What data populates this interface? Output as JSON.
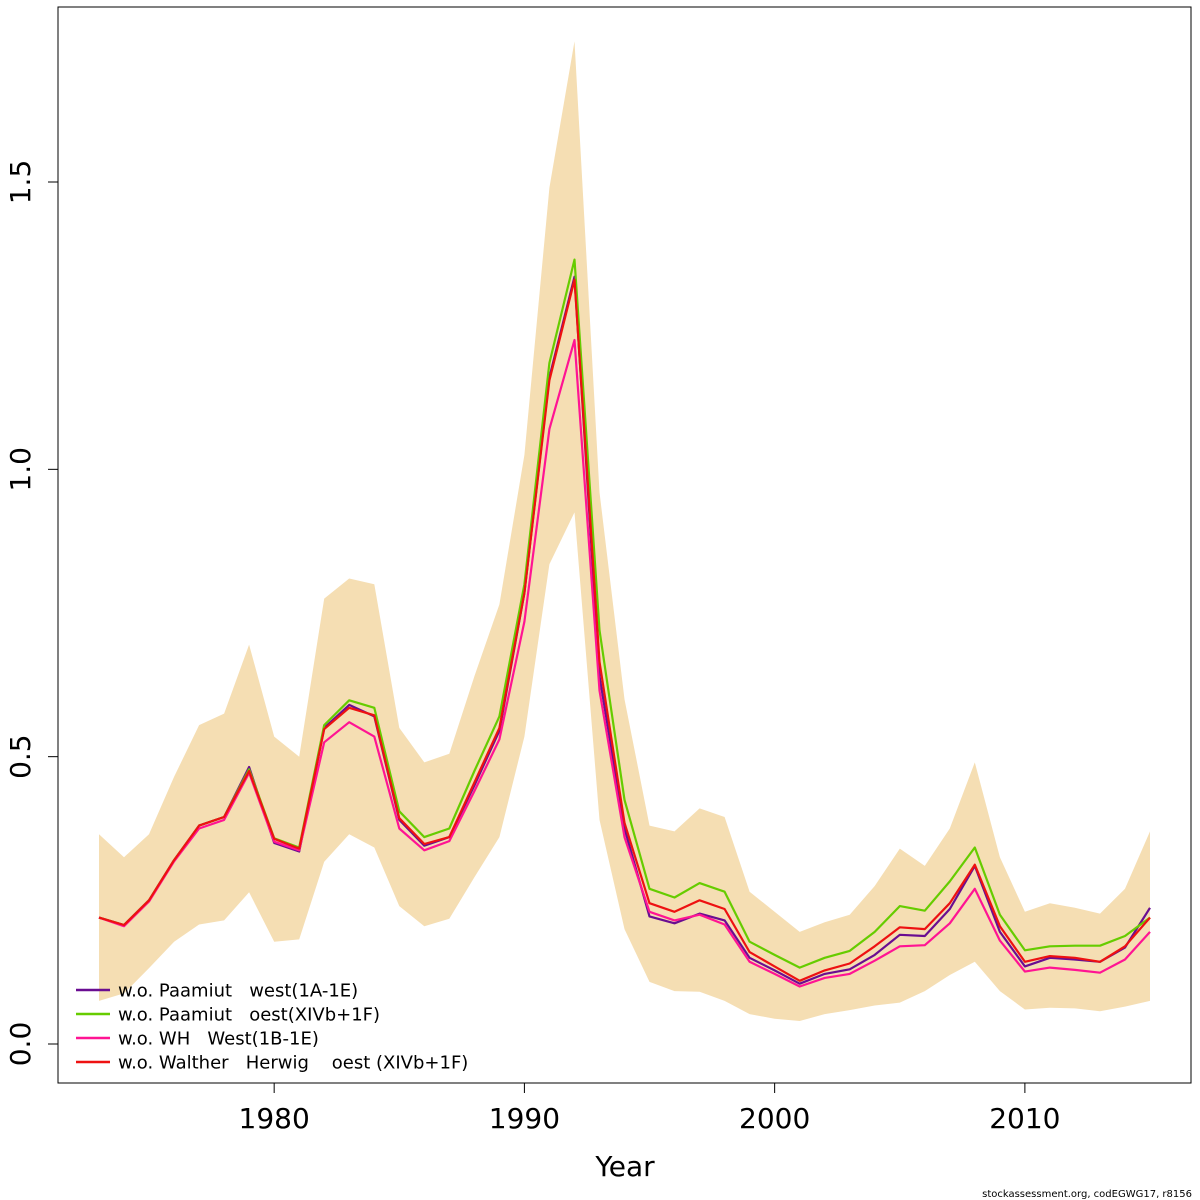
{
  "chart_data": {
    "type": "line",
    "title": "",
    "xlabel": "Year",
    "ylabel": "",
    "xlim": [
      1971.6,
      1976.4
    ],
    "ylim": [
      -0.05,
      1.82
    ],
    "x_ticks": [
      1980,
      1990,
      2000,
      2010
    ],
    "y_ticks": [
      0.0,
      0.5,
      1.0,
      1.5
    ],
    "x_tick_labels": [
      "1980",
      "1990",
      "2000",
      "2010"
    ],
    "y_tick_labels": [
      "0.0",
      "0.5",
      "1.0",
      "1.5"
    ],
    "grid": false,
    "legend_position": "bottom-left",
    "x": [
      1973,
      1974,
      1975,
      1976,
      1977,
      1978,
      1979,
      1980,
      1981,
      1982,
      1983,
      1984,
      1985,
      1986,
      1987,
      1988,
      1989,
      1990,
      1991,
      1992,
      1993,
      1994,
      1995,
      1996,
      1997,
      1998,
      1999,
      2000,
      2001,
      2002,
      2003,
      2004,
      2005,
      2006,
      2007,
      2008,
      2009,
      2010,
      2011,
      2012,
      2013,
      2014,
      2015
    ],
    "band": {
      "color": "#F5DEB3",
      "upper": [
        0.365,
        0.325,
        0.365,
        0.465,
        0.555,
        0.575,
        0.695,
        0.535,
        0.5,
        0.775,
        0.81,
        0.8,
        0.55,
        0.49,
        0.505,
        0.64,
        0.765,
        1.025,
        1.49,
        1.745,
        0.96,
        0.6,
        0.38,
        0.37,
        0.41,
        0.395,
        0.265,
        0.23,
        0.195,
        0.212,
        0.225,
        0.275,
        0.34,
        0.31,
        0.375,
        0.49,
        0.325,
        0.23,
        0.245,
        0.237,
        0.227,
        0.27,
        0.37
      ],
      "lower": [
        0.075,
        0.088,
        0.132,
        0.178,
        0.208,
        0.215,
        0.264,
        0.178,
        0.182,
        0.317,
        0.365,
        0.342,
        0.24,
        0.205,
        0.218,
        0.29,
        0.36,
        0.535,
        0.835,
        0.925,
        0.39,
        0.2,
        0.108,
        0.092,
        0.091,
        0.075,
        0.052,
        0.044,
        0.04,
        0.052,
        0.059,
        0.067,
        0.072,
        0.092,
        0.12,
        0.143,
        0.092,
        0.06,
        0.063,
        0.062,
        0.057,
        0.065,
        0.075
      ]
    },
    "series": [
      {
        "name": "w.o. Paamiut   west(1A-1E)",
        "color": "#6A0D91",
        "values": [
          0.22,
          0.207,
          0.25,
          0.32,
          0.38,
          0.395,
          0.482,
          0.35,
          0.335,
          0.55,
          0.59,
          0.57,
          0.39,
          0.345,
          0.36,
          0.45,
          0.545,
          0.785,
          1.16,
          1.335,
          0.64,
          0.375,
          0.222,
          0.21,
          0.227,
          0.215,
          0.15,
          0.128,
          0.105,
          0.122,
          0.13,
          0.155,
          0.19,
          0.188,
          0.235,
          0.31,
          0.195,
          0.135,
          0.15,
          0.147,
          0.143,
          0.168,
          0.237
        ]
      },
      {
        "name": "w.o. Paamiut   oest(XIVb+1F)",
        "color": "#66CC00",
        "values": [
          0.22,
          0.207,
          0.25,
          0.32,
          0.38,
          0.395,
          0.478,
          0.358,
          0.342,
          0.555,
          0.598,
          0.585,
          0.405,
          0.36,
          0.375,
          0.475,
          0.57,
          0.8,
          1.185,
          1.365,
          0.72,
          0.425,
          0.27,
          0.255,
          0.28,
          0.265,
          0.178,
          0.155,
          0.133,
          0.15,
          0.162,
          0.195,
          0.24,
          0.232,
          0.283,
          0.342,
          0.225,
          0.163,
          0.17,
          0.171,
          0.171,
          0.188,
          0.22
        ]
      },
      {
        "name": "w.o. WH   West(1B-1E)",
        "color": "#FF1493",
        "values": [
          0.22,
          0.205,
          0.248,
          0.318,
          0.375,
          0.39,
          0.472,
          0.352,
          0.337,
          0.525,
          0.56,
          0.535,
          0.375,
          0.337,
          0.353,
          0.44,
          0.53,
          0.735,
          1.07,
          1.225,
          0.615,
          0.36,
          0.23,
          0.215,
          0.225,
          0.208,
          0.143,
          0.122,
          0.1,
          0.115,
          0.122,
          0.145,
          0.17,
          0.172,
          0.21,
          0.27,
          0.18,
          0.126,
          0.133,
          0.129,
          0.124,
          0.147,
          0.195
        ]
      },
      {
        "name": "w.o. Walther   Herwig    oest (XIVb+1F)",
        "color": "#EE1111",
        "values": [
          0.22,
          0.207,
          0.25,
          0.32,
          0.38,
          0.395,
          0.475,
          0.357,
          0.34,
          0.548,
          0.585,
          0.572,
          0.393,
          0.348,
          0.36,
          0.455,
          0.55,
          0.785,
          1.155,
          1.33,
          0.665,
          0.385,
          0.245,
          0.23,
          0.25,
          0.235,
          0.16,
          0.135,
          0.11,
          0.128,
          0.14,
          0.17,
          0.203,
          0.2,
          0.245,
          0.312,
          0.205,
          0.143,
          0.153,
          0.15,
          0.143,
          0.17,
          0.22
        ]
      }
    ]
  },
  "footer": "stockassessment.org, codEGWG17, r8156"
}
